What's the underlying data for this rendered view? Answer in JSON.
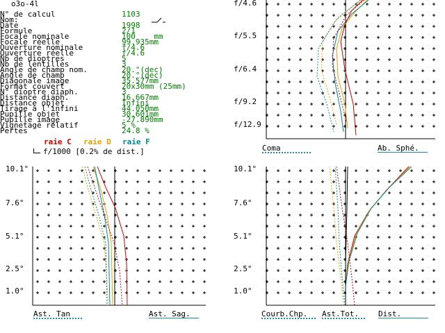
{
  "lens_name": "o3o-4l",
  "params": [
    {
      "key": "N° de calcul",
      "value": "1103"
    },
    {
      "key": "Nom:",
      "value": ""
    },
    {
      "key": "Date",
      "value": "1998"
    },
    {
      "key": "Formule",
      "value": "2/1"
    },
    {
      "key": "Focale nominale",
      "value": "100    mm"
    },
    {
      "key": "Focale réelle",
      "value": "99.935mm"
    },
    {
      "key": "Ouverture nominale",
      "value": "f/4.6"
    },
    {
      "key": "Ouverture réelle",
      "value": "f/4.6"
    },
    {
      "key": "Nb de dioptres",
      "value": "5"
    },
    {
      "key": "Nb de lentilles",
      "value": "3"
    },
    {
      "key": "Angle de champ nom.",
      "value": "20.°(dec)"
    },
    {
      "key": "Angle de champ",
      "value": "20.°(dec)"
    },
    {
      "key": "Diagonale image",
      "value": "35.577mm"
    },
    {
      "key": "Format couvert",
      "value": "20x30mm (25mm)"
    },
    {
      "key": "N° dioptre diaph.",
      "value": "3"
    },
    {
      "key": "Distance diaph.",
      "value": "16.667mm"
    },
    {
      "key": "Distance objet",
      "value": "Infini"
    },
    {
      "key": "Tirage à l'infini",
      "value": "44.050mm"
    },
    {
      "key": "Pupille objet",
      "value": "30.601mm"
    },
    {
      "key": "Pupille image",
      "value": "-27.890mm"
    },
    {
      "key": "Vignetage relatif",
      "value": "5 %"
    },
    {
      "key": "Pertes",
      "value": "24.8 %"
    }
  ],
  "rays": {
    "c": "raie C",
    "d": "raie D",
    "f": "raie F"
  },
  "scale_note": "f/1000 [0.2% de dist.]",
  "colors": {
    "c": "#cc0000",
    "d": "#e8a000",
    "f": "#008898",
    "ink": "#000000",
    "green": "#008000",
    "teal": "#1a8aa8"
  },
  "coma_chart": {
    "y_labels": [
      "f/4.6",
      "f/5.5",
      "f/6.4",
      "f/9.2",
      "f/12.9"
    ],
    "left_tab": "Coma",
    "right_tab": "Ab. Sphé."
  },
  "ast_chart": {
    "y_labels": [
      "10.1°",
      "7.6°",
      "5.1°",
      "2.5°",
      "1.0°"
    ],
    "left_tab": "Ast. Tan",
    "right_tab": "Ast. Sag."
  },
  "field_chart": {
    "y_labels": [
      "10.1°",
      "7.6°",
      "5.1°",
      "2.5°",
      "1.0°"
    ],
    "tabs": [
      "Courb.Chp.",
      "Ast.Tot.",
      "Dist."
    ]
  }
}
